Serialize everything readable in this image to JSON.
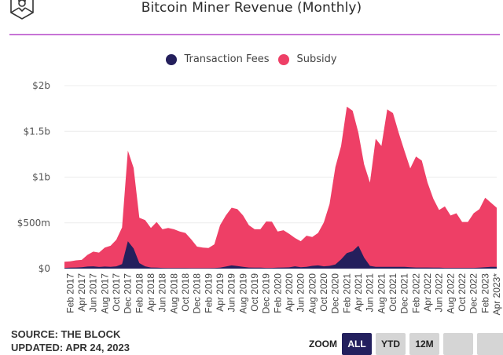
{
  "header": {
    "title": "Bitcoin Miner Revenue (Monthly)",
    "logo_icon": "the-block-cube-logo-icon"
  },
  "legend": [
    {
      "label": "Transaction Fees",
      "color": "#241f5c"
    },
    {
      "label": "Subsidy",
      "color": "#ee3f66"
    }
  ],
  "footer": {
    "source": "SOURCE: THE BLOCK",
    "updated": "UPDATED: APR 24, 2023"
  },
  "zoom_controls": {
    "label": "ZOOM",
    "buttons": [
      {
        "label": "ALL",
        "active": true
      },
      {
        "label": "YTD",
        "active": false
      },
      {
        "label": "12M",
        "active": false
      },
      {
        "label": "",
        "active": false
      },
      {
        "label": "",
        "active": false
      }
    ]
  },
  "chart_data": {
    "type": "area",
    "stacked": true,
    "title": "Bitcoin Miner Revenue (Monthly)",
    "xlabel": "",
    "ylabel": "",
    "unit": "USD millions",
    "ylim": [
      0,
      2000
    ],
    "y_ticks": [
      {
        "value": 0,
        "label": "$0"
      },
      {
        "value": 500,
        "label": "$500m"
      },
      {
        "value": 1000,
        "label": "$1b"
      },
      {
        "value": 1500,
        "label": "$1.5b"
      },
      {
        "value": 2000,
        "label": "$2b"
      }
    ],
    "grid": true,
    "legend_position": "top-center",
    "x": [
      "Jan 2017",
      "Feb 2017",
      "Mar 2017",
      "Apr 2017",
      "May 2017",
      "Jun 2017",
      "Jul 2017",
      "Aug 2017",
      "Sep 2017",
      "Oct 2017",
      "Nov 2017",
      "Dec 2017",
      "Jan 2018",
      "Feb 2018",
      "Mar 2018",
      "Apr 2018",
      "May 2018",
      "Jun 2018",
      "Jul 2018",
      "Aug 2018",
      "Sep 2018",
      "Oct 2018",
      "Nov 2018",
      "Dec 2018",
      "Jan 2019",
      "Feb 2019",
      "Mar 2019",
      "Apr 2019",
      "May 2019",
      "Jun 2019",
      "Jul 2019",
      "Aug 2019",
      "Sep 2019",
      "Oct 2019",
      "Nov 2019",
      "Dec 2019",
      "Jan 2020",
      "Feb 2020",
      "Mar 2020",
      "Apr 2020",
      "May 2020",
      "Jun 2020",
      "Jul 2020",
      "Aug 2020",
      "Sep 2020",
      "Oct 2020",
      "Nov 2020",
      "Dec 2020",
      "Jan 2021",
      "Feb 2021",
      "Mar 2021",
      "Apr 2021",
      "May 2021",
      "Jun 2021",
      "Jul 2021",
      "Aug 2021",
      "Sep 2021",
      "Oct 2021",
      "Nov 2021",
      "Dec 2021",
      "Jan 2022",
      "Feb 2022",
      "Mar 2022",
      "Apr 2022",
      "May 2022",
      "Jun 2022",
      "Jul 2022",
      "Aug 2022",
      "Sep 2022",
      "Oct 2022",
      "Nov 2022",
      "Dec 2022",
      "Jan 2023",
      "Feb 2023",
      "Mar 2023",
      "Apr 2023*"
    ],
    "x_tick_labels": [
      "Feb 2017",
      "Apr 2017",
      "Jun 2017",
      "Aug 2017",
      "Oct 2017",
      "Dec 2017",
      "Feb 2018",
      "Apr 2018",
      "Jun 2018",
      "Aug 2018",
      "Oct 2018",
      "Dec 2018",
      "Feb 2019",
      "Apr 2019",
      "Jun 2019",
      "Aug 2019",
      "Oct 2019",
      "Dec 2019",
      "Feb 2020",
      "Apr 2020",
      "Jun 2020",
      "Aug 2020",
      "Oct 2020",
      "Dec 2020",
      "Feb 2021",
      "Apr 2021",
      "Jun 2021",
      "Aug 2021",
      "Oct 2021",
      "Dec 2021",
      "Feb 2022",
      "Apr 2022",
      "Jun 2022",
      "Aug 2022",
      "Oct 2022",
      "Dec 2022",
      "Feb 2023",
      "Apr 2023*"
    ],
    "series": [
      {
        "name": "Transaction Fees",
        "color": "#241f5c",
        "values": [
          8,
          10,
          12,
          15,
          22,
          25,
          18,
          22,
          20,
          25,
          50,
          300,
          220,
          60,
          25,
          12,
          10,
          8,
          7,
          6,
          6,
          6,
          5,
          5,
          5,
          5,
          6,
          10,
          22,
          35,
          28,
          20,
          12,
          10,
          10,
          8,
          8,
          10,
          12,
          14,
          25,
          15,
          20,
          30,
          35,
          25,
          30,
          45,
          100,
          170,
          190,
          250,
          120,
          30,
          20,
          20,
          20,
          20,
          20,
          20,
          15,
          12,
          12,
          12,
          10,
          10,
          8,
          8,
          8,
          8,
          8,
          8,
          10,
          15,
          20,
          20
        ]
      },
      {
        "name": "Subsidy",
        "color": "#ee3f66",
        "values": [
          67,
          70,
          78,
          80,
          128,
          160,
          157,
          208,
          230,
          290,
          400,
          990,
          880,
          495,
          505,
          433,
          500,
          422,
          438,
          424,
          399,
          384,
          315,
          235,
          225,
          220,
          259,
          465,
          558,
          630,
          622,
          560,
          463,
          420,
          420,
          507,
          505,
          395,
          408,
          366,
          310,
          285,
          340,
          315,
          355,
          480,
          675,
          1065,
          1240,
          1600,
          1535,
          1235,
          1020,
          910,
          1400,
          1320,
          1720,
          1680,
          1465,
          1265,
          1080,
          1213,
          1168,
          928,
          755,
          630,
          672,
          572,
          597,
          502,
          502,
          597,
          640,
          760,
          700,
          645
        ]
      }
    ]
  }
}
